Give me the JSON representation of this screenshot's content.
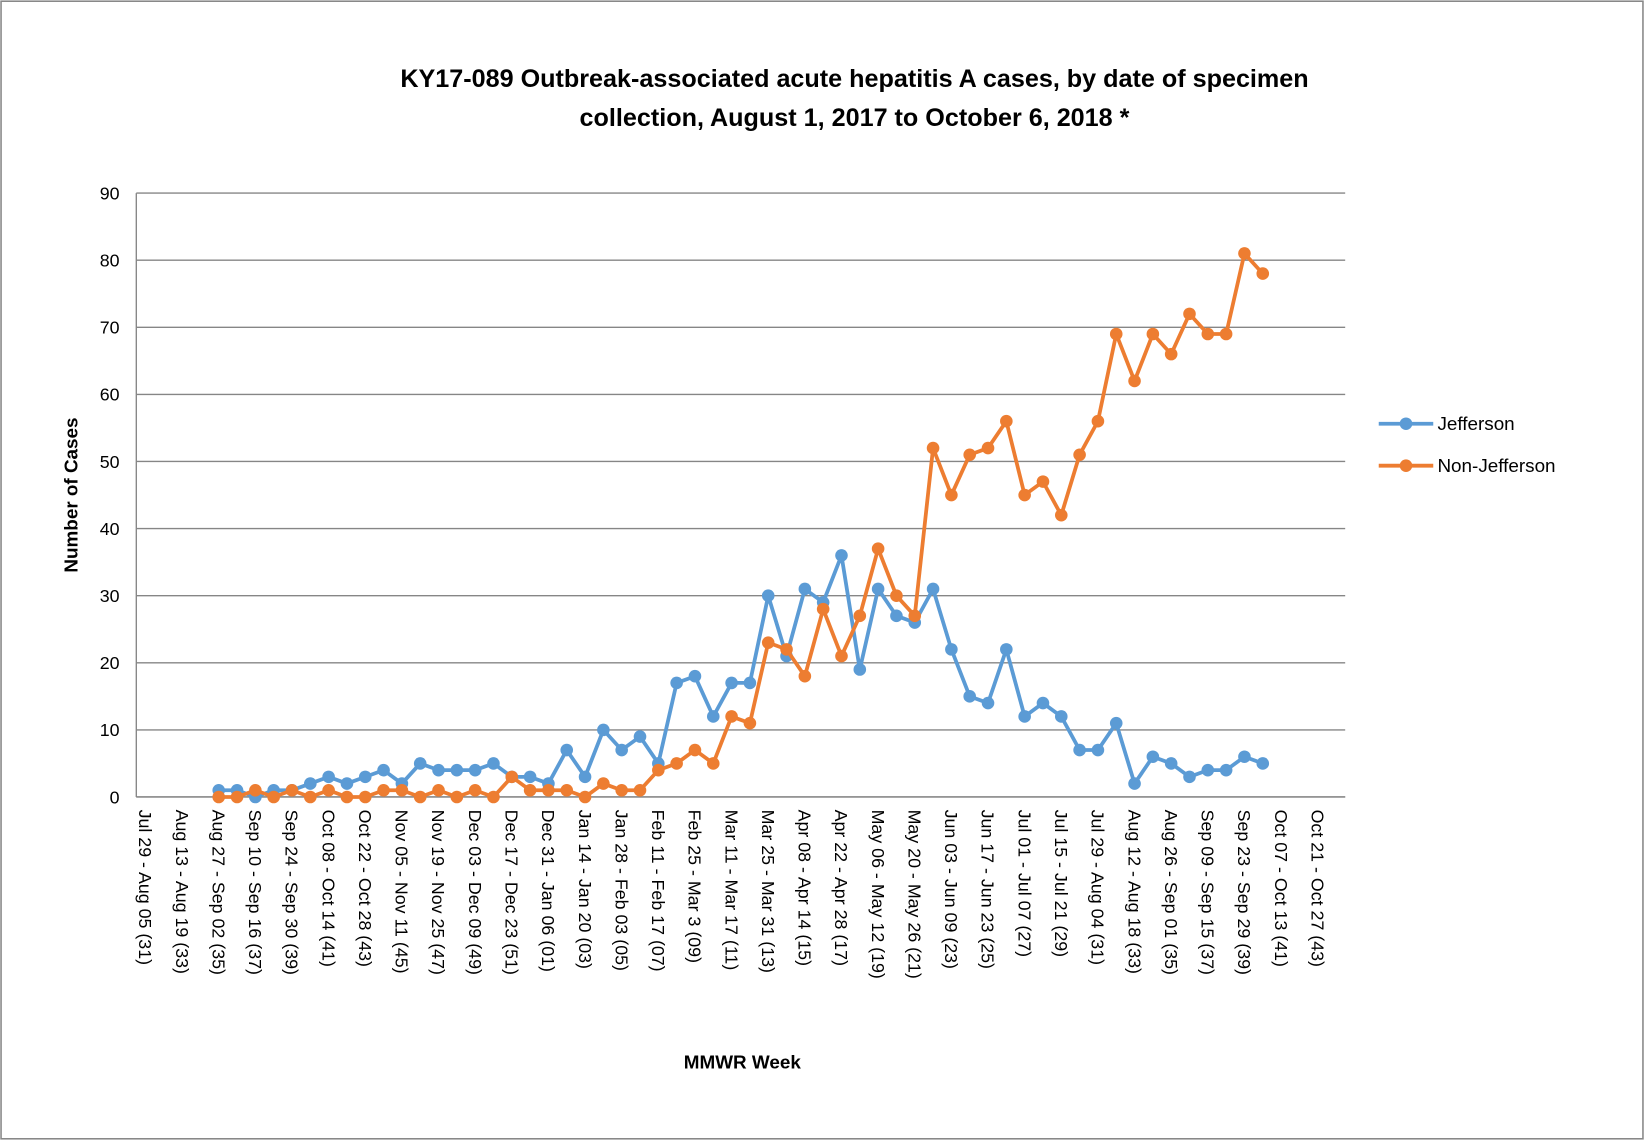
{
  "chart_data": {
    "type": "line",
    "title": [
      "KY17-089 Outbreak-associated acute hepatitis A cases, by date of specimen",
      "collection, August 1, 2017 to October 6, 2018 *"
    ],
    "x_label": "MMWR Week",
    "y_label": "Number of Cases",
    "categories": [
      "Jul 29 - Aug 05 (31)",
      null,
      "Aug 13 - Aug 19 (33)",
      null,
      "Aug 27 - Sep 02 (35)",
      null,
      "Sep 10 - Sep 16 (37)",
      null,
      "Sep 24 - Sep 30 (39)",
      null,
      "Oct 08 - Oct 14 (41)",
      null,
      "Oct 22 - Oct 28 (43)",
      null,
      "Nov 05 - Nov 11 (45)",
      null,
      "Nov 19 - Nov 25 (47)",
      null,
      "Dec 03 - Dec 09 (49)",
      null,
      "Dec 17 - Dec 23 (51)",
      null,
      "Dec 31 - Jan 06 (01)",
      null,
      "Jan 14 - Jan 20 (03)",
      null,
      "Jan 28 - Feb 03 (05)",
      null,
      "Feb 11 - Feb 17 (07)",
      null,
      "Feb 25 - Mar 3 (09)",
      null,
      "Mar 11 - Mar 17 (11)",
      null,
      "Mar 25 - Mar 31 (13)",
      null,
      "Apr 08 - Apr 14 (15)",
      null,
      "Apr 22 - Apr 28 (17)",
      null,
      "May 06 - May 12 (19)",
      null,
      "May 20 - May 26 (21)",
      null,
      "Jun 03 - Jun 09 (23)",
      null,
      "Jun 17 - Jun 23 (25)",
      null,
      "Jul 01 - Jul 07 (27)",
      null,
      "Jul 15 - Jul 21 (29)",
      null,
      "Jul 29 - Aug 04 (31)",
      null,
      "Aug 12 - Aug 18 (33)",
      null,
      "Aug 26 - Sep 01 (35)",
      null,
      "Sep 09 - Sep 15 (37)",
      null,
      "Sep 23 - Sep 29 (39)",
      null,
      "Oct 07 - Oct 13 (41)",
      null,
      "Oct 21 - Oct 27 (43)",
      null
    ],
    "series": [
      {
        "name": "Jefferson",
        "color": "#5b9bd5",
        "values": [
          null,
          null,
          null,
          null,
          1,
          1,
          0,
          1,
          1,
          2,
          3,
          2,
          3,
          4,
          2,
          5,
          4,
          4,
          4,
          5,
          3,
          3,
          2,
          7,
          3,
          10,
          7,
          9,
          5,
          17,
          18,
          12,
          17,
          17,
          30,
          21,
          31,
          29,
          36,
          19,
          31,
          27,
          26,
          31,
          22,
          15,
          14,
          22,
          12,
          14,
          12,
          7,
          7,
          11,
          2,
          6,
          5,
          3,
          4,
          4,
          6,
          5,
          null,
          null,
          null,
          null
        ]
      },
      {
        "name": "Non-Jefferson",
        "color": "#ed7d31",
        "values": [
          null,
          null,
          null,
          null,
          0,
          0,
          1,
          0,
          1,
          0,
          1,
          0,
          0,
          1,
          1,
          0,
          1,
          0,
          1,
          0,
          3,
          1,
          1,
          1,
          0,
          2,
          1,
          1,
          4,
          5,
          7,
          5,
          12,
          11,
          23,
          22,
          18,
          28,
          21,
          27,
          37,
          30,
          27,
          52,
          45,
          51,
          52,
          56,
          45,
          47,
          42,
          51,
          56,
          69,
          62,
          69,
          66,
          72,
          69,
          69,
          81,
          78,
          null,
          null,
          null,
          null
        ]
      }
    ],
    "ylim": [
      0,
      90
    ],
    "yticks": [
      0,
      10,
      20,
      30,
      40,
      50,
      60,
      70,
      80,
      90
    ],
    "grid": true,
    "legend": "right"
  }
}
